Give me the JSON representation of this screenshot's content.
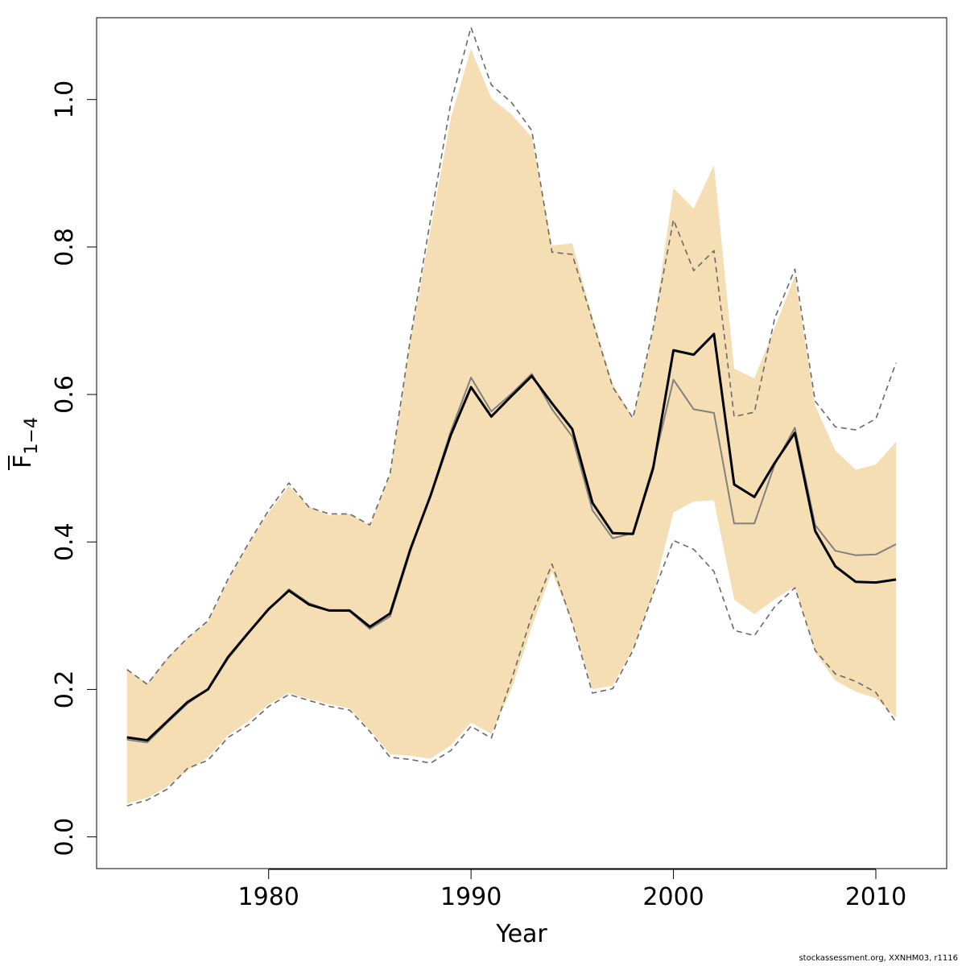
{
  "chart_data": {
    "type": "line",
    "xlabel": "Year",
    "ylabel": "F",
    "ylabel_subscript": "1−4",
    "xlim": [
      1971.5,
      2013.5
    ],
    "ylim": [
      -0.043,
      1.111
    ],
    "x_ticks": [
      1980,
      1990,
      2000,
      2010
    ],
    "x_tick_labels": [
      "1980",
      "1990",
      "2000",
      "2010"
    ],
    "y_ticks": [
      0.0,
      0.2,
      0.4,
      0.6,
      0.8,
      1.0
    ],
    "y_tick_labels": [
      "0.0",
      "0.2",
      "0.4",
      "0.6",
      "0.8",
      "1.0"
    ],
    "grid": false,
    "colors": {
      "band": "#f5deb3",
      "estimate": "#000000",
      "previous": "#808080",
      "previous_ci": "#696969"
    },
    "x": [
      1973,
      1974,
      1975,
      1976,
      1977,
      1978,
      1979,
      1980,
      1981,
      1982,
      1983,
      1984,
      1985,
      1986,
      1987,
      1988,
      1989,
      1990,
      1991,
      1992,
      1993,
      1994,
      1995,
      1996,
      1997,
      1998,
      1999,
      2000,
      2001,
      2002,
      2003,
      2004,
      2005,
      2006,
      2007,
      2008,
      2009,
      2010,
      2011
    ],
    "series": [
      {
        "role": "estimate",
        "values": [
          0.135,
          0.131,
          0.157,
          0.183,
          0.2,
          0.244,
          0.277,
          0.309,
          0.334,
          0.315,
          0.307,
          0.307,
          0.285,
          0.303,
          0.39,
          0.463,
          0.545,
          0.61,
          0.57,
          0.598,
          0.625,
          0.588,
          0.553,
          0.453,
          0.412,
          0.411,
          0.5,
          0.66,
          0.654,
          0.682,
          0.478,
          0.461,
          0.507,
          0.548,
          0.415,
          0.367,
          0.346,
          0.345,
          0.349
        ]
      },
      {
        "role": "ci_lower",
        "values": [
          0.045,
          0.053,
          0.068,
          0.09,
          0.108,
          0.138,
          0.157,
          0.18,
          0.195,
          0.187,
          0.18,
          0.174,
          0.145,
          0.112,
          0.11,
          0.106,
          0.124,
          0.155,
          0.14,
          0.2,
          0.285,
          0.36,
          0.29,
          0.2,
          0.205,
          0.255,
          0.33,
          0.44,
          0.455,
          0.456,
          0.322,
          0.302,
          0.322,
          0.34,
          0.25,
          0.212,
          0.197,
          0.188,
          0.162
        ]
      },
      {
        "role": "ci_upper",
        "values": [
          0.227,
          0.208,
          0.243,
          0.27,
          0.292,
          0.348,
          0.396,
          0.44,
          0.476,
          0.448,
          0.436,
          0.438,
          0.422,
          0.491,
          0.672,
          0.825,
          0.975,
          1.069,
          1.002,
          0.98,
          0.949,
          0.802,
          0.805,
          0.705,
          0.615,
          0.568,
          0.688,
          0.88,
          0.852,
          0.911,
          0.635,
          0.622,
          0.69,
          0.761,
          0.585,
          0.524,
          0.498,
          0.505,
          0.536
        ]
      },
      {
        "role": "previous",
        "values": [
          0.132,
          0.128,
          0.155,
          0.181,
          0.2,
          0.242,
          0.276,
          0.308,
          0.336,
          0.317,
          0.307,
          0.306,
          0.282,
          0.299,
          0.387,
          0.464,
          0.55,
          0.623,
          0.577,
          0.601,
          0.628,
          0.58,
          0.543,
          0.443,
          0.405,
          0.412,
          0.504,
          0.62,
          0.58,
          0.575,
          0.425,
          0.425,
          0.505,
          0.555,
          0.423,
          0.388,
          0.382,
          0.383,
          0.397
        ]
      },
      {
        "role": "previous_lower",
        "values": [
          0.042,
          0.05,
          0.065,
          0.093,
          0.104,
          0.135,
          0.152,
          0.177,
          0.193,
          0.185,
          0.177,
          0.172,
          0.143,
          0.108,
          0.105,
          0.1,
          0.117,
          0.15,
          0.134,
          0.213,
          0.3,
          0.37,
          0.29,
          0.195,
          0.201,
          0.253,
          0.33,
          0.402,
          0.39,
          0.36,
          0.28,
          0.273,
          0.312,
          0.338,
          0.253,
          0.221,
          0.211,
          0.196,
          0.155
        ]
      },
      {
        "role": "previous_upper",
        "values": [
          0.227,
          0.207,
          0.242,
          0.27,
          0.293,
          0.35,
          0.398,
          0.443,
          0.48,
          0.447,
          0.438,
          0.438,
          0.423,
          0.493,
          0.675,
          0.838,
          0.995,
          1.098,
          1.02,
          0.996,
          0.958,
          0.793,
          0.79,
          0.7,
          0.61,
          0.568,
          0.69,
          0.837,
          0.768,
          0.795,
          0.57,
          0.576,
          0.703,
          0.77,
          0.591,
          0.556,
          0.552,
          0.567,
          0.643
        ]
      }
    ]
  },
  "footnote": "stockassessment.org, XXNHM03, r1116"
}
